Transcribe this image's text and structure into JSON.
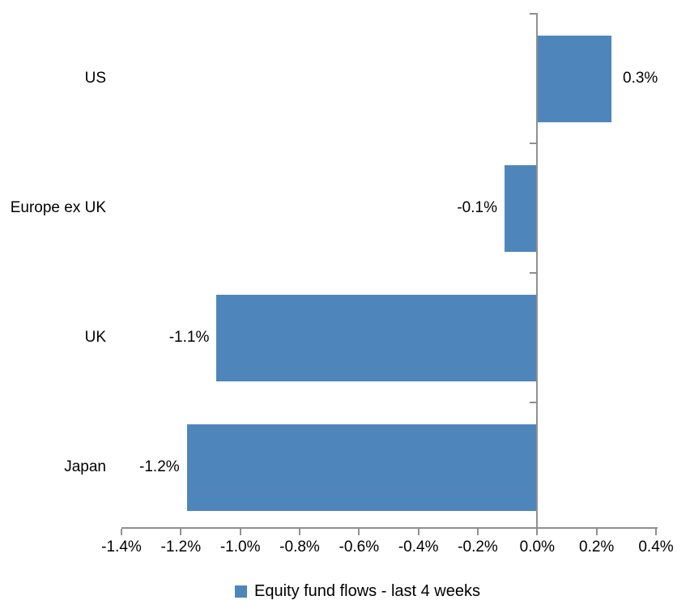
{
  "chart_data": {
    "type": "bar",
    "orientation": "horizontal",
    "categories": [
      "US",
      "Europe ex UK",
      "UK",
      "Japan"
    ],
    "series": [
      {
        "name": "Equity fund flows - last 4 weeks",
        "values": [
          0.25,
          -0.11,
          -1.08,
          -1.18
        ],
        "data_labels": [
          "0.3%",
          "-0.1%",
          "-1.1%",
          "-1.2%"
        ]
      }
    ],
    "xlim": [
      -1.4,
      0.4
    ],
    "x_tick_step": 0.2,
    "x_tick_labels": [
      "-1.4%",
      "-1.2%",
      "-1.0%",
      "-0.8%",
      "-0.6%",
      "-0.4%",
      "-0.2%",
      "0.0%",
      "0.2%",
      "0.4%"
    ],
    "grid": false,
    "legend_position": "bottom",
    "bar_color": "#4E86BC",
    "axis_color": "#909090",
    "text_color": "#000000"
  }
}
